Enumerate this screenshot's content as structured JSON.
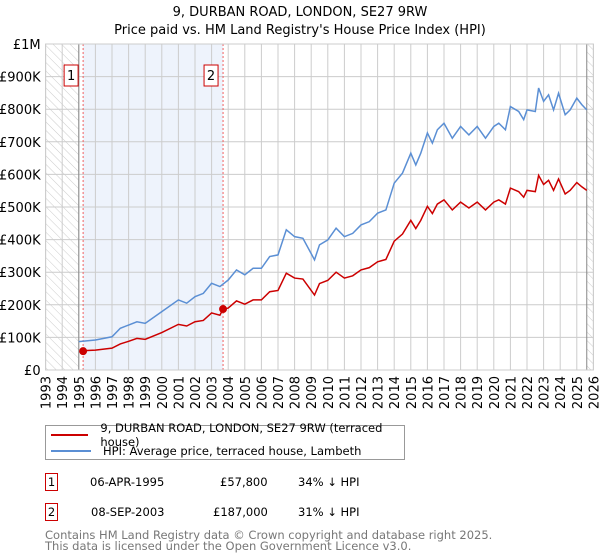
{
  "chart_data": {
    "type": "line",
    "title": "9, DURBAN ROAD, LONDON, SE27 9RW",
    "subtitle": "Price paid vs. HM Land Registry's House Price Index (HPI)",
    "xlim": [
      1993,
      2026
    ],
    "ylim": [
      0,
      1000000
    ],
    "x_ticks": [
      "1993",
      "1994",
      "1995",
      "1996",
      "1997",
      "1998",
      "1999",
      "2000",
      "2001",
      "2002",
      "2003",
      "2004",
      "2005",
      "2006",
      "2007",
      "2008",
      "2009",
      "2010",
      "2011",
      "2012",
      "2013",
      "2014",
      "2015",
      "2016",
      "2017",
      "2018",
      "2019",
      "2020",
      "2021",
      "2022",
      "2023",
      "2024",
      "2025",
      "2026"
    ],
    "y_ticks": [
      {
        "v": 0,
        "label": "£0"
      },
      {
        "v": 100000,
        "label": "£100K"
      },
      {
        "v": 200000,
        "label": "£200K"
      },
      {
        "v": 300000,
        "label": "£300K"
      },
      {
        "v": 400000,
        "label": "£400K"
      },
      {
        "v": 500000,
        "label": "£500K"
      },
      {
        "v": 600000,
        "label": "£600K"
      },
      {
        "v": 700000,
        "label": "£700K"
      },
      {
        "v": 800000,
        "label": "£800K"
      },
      {
        "v": 900000,
        "label": "£900K"
      },
      {
        "v": 1000000,
        "label": "£1M"
      }
    ],
    "grid": true,
    "series": [
      {
        "name": "9, DURBAN ROAD, LONDON, SE27 9RW (terraced house)",
        "color": "#cc0000",
        "points": [
          [
            1995.27,
            57.8
          ],
          [
            1995.5,
            60
          ],
          [
            1996,
            61
          ],
          [
            1997,
            67
          ],
          [
            1997.5,
            80
          ],
          [
            1998,
            88
          ],
          [
            1998.5,
            97
          ],
          [
            1999,
            94
          ],
          [
            2000,
            115
          ],
          [
            2001,
            140
          ],
          [
            2001.5,
            135
          ],
          [
            2002,
            148
          ],
          [
            2002.5,
            152
          ],
          [
            2003,
            175
          ],
          [
            2003.5,
            168
          ],
          [
            2003.69,
            187
          ],
          [
            2004,
            190
          ],
          [
            2004.5,
            212
          ],
          [
            2005,
            202
          ],
          [
            2005.5,
            215
          ],
          [
            2006,
            215
          ],
          [
            2006.5,
            240
          ],
          [
            2007,
            244
          ],
          [
            2007.5,
            297
          ],
          [
            2008,
            282
          ],
          [
            2008.5,
            279
          ],
          [
            2009.2,
            230
          ],
          [
            2009.5,
            265
          ],
          [
            2010,
            275
          ],
          [
            2010.5,
            300
          ],
          [
            2011,
            282
          ],
          [
            2011.5,
            289
          ],
          [
            2012,
            307
          ],
          [
            2012.5,
            314
          ],
          [
            2013,
            332
          ],
          [
            2013.5,
            339
          ],
          [
            2014,
            395
          ],
          [
            2014.5,
            417
          ],
          [
            2015,
            459
          ],
          [
            2015.3,
            434
          ],
          [
            2015.6,
            459
          ],
          [
            2016,
            502
          ],
          [
            2016.3,
            480
          ],
          [
            2016.6,
            509
          ],
          [
            2017,
            522
          ],
          [
            2017.5,
            491
          ],
          [
            2018,
            515
          ],
          [
            2018.5,
            497
          ],
          [
            2019,
            515
          ],
          [
            2019.5,
            491
          ],
          [
            2020,
            515
          ],
          [
            2020.3,
            522
          ],
          [
            2020.7,
            509
          ],
          [
            2021,
            558
          ],
          [
            2021.5,
            547
          ],
          [
            2021.8,
            530
          ],
          [
            2022,
            551
          ],
          [
            2022.5,
            547
          ],
          [
            2022.7,
            597
          ],
          [
            2023,
            569
          ],
          [
            2023.3,
            582
          ],
          [
            2023.6,
            551
          ],
          [
            2023.9,
            586
          ],
          [
            2024.3,
            540
          ],
          [
            2024.6,
            551
          ],
          [
            2025,
            575
          ],
          [
            2025.3,
            562
          ],
          [
            2025.6,
            551
          ]
        ]
      },
      {
        "name": "HPI: Average price, terraced house, Lambeth",
        "color": "#5b8fd4",
        "points": [
          [
            1995,
            87
          ],
          [
            1996,
            92
          ],
          [
            1997,
            102
          ],
          [
            1997.5,
            128
          ],
          [
            1998,
            138
          ],
          [
            1998.5,
            148
          ],
          [
            1999,
            143
          ],
          [
            2000,
            179
          ],
          [
            2001,
            215
          ],
          [
            2001.5,
            205
          ],
          [
            2002,
            225
          ],
          [
            2002.5,
            235
          ],
          [
            2003,
            266
          ],
          [
            2003.5,
            256
          ],
          [
            2004,
            276
          ],
          [
            2004.5,
            307
          ],
          [
            2005,
            292
          ],
          [
            2005.5,
            312
          ],
          [
            2006,
            312
          ],
          [
            2006.5,
            348
          ],
          [
            2007,
            353
          ],
          [
            2007.5,
            430
          ],
          [
            2008,
            409
          ],
          [
            2008.5,
            404
          ],
          [
            2009.2,
            338
          ],
          [
            2009.5,
            384
          ],
          [
            2010,
            399
          ],
          [
            2010.5,
            435
          ],
          [
            2011,
            409
          ],
          [
            2011.5,
            419
          ],
          [
            2012,
            445
          ],
          [
            2012.5,
            455
          ],
          [
            2013,
            481
          ],
          [
            2013.5,
            491
          ],
          [
            2014,
            573
          ],
          [
            2014.5,
            604
          ],
          [
            2015,
            665
          ],
          [
            2015.3,
            629
          ],
          [
            2015.6,
            665
          ],
          [
            2016,
            727
          ],
          [
            2016.3,
            696
          ],
          [
            2016.6,
            737
          ],
          [
            2017,
            757
          ],
          [
            2017.5,
            711
          ],
          [
            2018,
            747
          ],
          [
            2018.5,
            721
          ],
          [
            2019,
            747
          ],
          [
            2019.5,
            711
          ],
          [
            2020,
            747
          ],
          [
            2020.3,
            757
          ],
          [
            2020.7,
            737
          ],
          [
            2021,
            808
          ],
          [
            2021.5,
            793
          ],
          [
            2021.8,
            768
          ],
          [
            2022,
            798
          ],
          [
            2022.5,
            793
          ],
          [
            2022.7,
            865
          ],
          [
            2023,
            824
          ],
          [
            2023.3,
            844
          ],
          [
            2023.6,
            798
          ],
          [
            2023.9,
            849
          ],
          [
            2024.3,
            783
          ],
          [
            2024.6,
            798
          ],
          [
            2025,
            834
          ],
          [
            2025.3,
            814
          ],
          [
            2025.6,
            798
          ]
        ]
      }
    ],
    "sales": [
      {
        "id": "1",
        "x": 1995.26,
        "price": 57.8
      },
      {
        "id": "2",
        "x": 2003.69,
        "price": 187
      }
    ],
    "data_start": 1995,
    "data_end": 2025.6,
    "units_note": "series values in £K"
  },
  "legend": {
    "red": "9, DURBAN ROAD, LONDON, SE27 9RW (terraced house)",
    "blue": "HPI: Average price, terraced house, Lambeth"
  },
  "sales_table": [
    {
      "id": "1",
      "date": "06-APR-1995",
      "price": "£57,800",
      "hpi": "34% ↓ HPI"
    },
    {
      "id": "2",
      "date": "08-SEP-2003",
      "price": "£187,000",
      "hpi": "31% ↓ HPI"
    }
  ],
  "footer": [
    "Contains HM Land Registry data © Crown copyright and database right 2025.",
    "This data is licensed under the Open Government Licence v3.0."
  ]
}
